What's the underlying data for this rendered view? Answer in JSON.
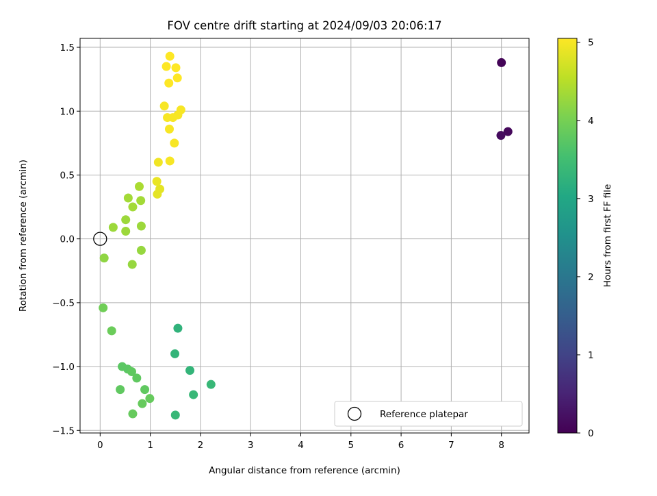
{
  "chart_data": {
    "type": "scatter",
    "title": "FOV centre drift starting at 2024/09/03 20:06:17",
    "xlabel": "Angular distance from reference (arcmin)",
    "ylabel": "Rotation from reference (arcmin)",
    "xlim": [
      -0.4,
      8.55
    ],
    "ylim": [
      -1.52,
      1.57
    ],
    "xticks": [
      0,
      1,
      2,
      3,
      4,
      5,
      6,
      7,
      8
    ],
    "xtick_labels": [
      "0",
      "1",
      "2",
      "3",
      "4",
      "5",
      "6",
      "7",
      "8"
    ],
    "yticks": [
      -1.5,
      -1.0,
      -0.5,
      0.0,
      0.5,
      1.0,
      1.5
    ],
    "ytick_labels": [
      "−1.5",
      "−1.0",
      "−0.5",
      "0.0",
      "0.5",
      "1.0",
      "1.5"
    ],
    "grid": true,
    "legend": {
      "position": "lower-right",
      "entries": [
        "Reference platepar"
      ]
    },
    "reference_point": {
      "x": 0,
      "y": 0
    },
    "colorbar": {
      "label": "Hours from first FF file",
      "range": [
        0,
        5.05
      ],
      "ticks": [
        0,
        1,
        2,
        3,
        4,
        5
      ],
      "tick_labels": [
        "0",
        "1",
        "2",
        "3",
        "4",
        "5"
      ],
      "colormap": "viridis"
    },
    "series": [
      {
        "points": [
          {
            "x": 8.0,
            "y": 1.38,
            "hours": 0.05
          },
          {
            "x": 8.13,
            "y": 0.84,
            "hours": 0.1
          },
          {
            "x": 7.99,
            "y": 0.81,
            "hours": 0.15
          },
          {
            "x": 1.55,
            "y": -0.7,
            "hours": 3.25
          },
          {
            "x": 1.49,
            "y": -0.9,
            "hours": 3.3
          },
          {
            "x": 1.79,
            "y": -1.03,
            "hours": 3.3
          },
          {
            "x": 2.21,
            "y": -1.14,
            "hours": 3.35
          },
          {
            "x": 1.86,
            "y": -1.22,
            "hours": 3.35
          },
          {
            "x": 1.5,
            "y": -1.38,
            "hours": 3.35
          },
          {
            "x": 0.44,
            "y": -1.0,
            "hours": 3.75
          },
          {
            "x": 0.55,
            "y": -1.02,
            "hours": 3.75
          },
          {
            "x": 0.63,
            "y": -1.04,
            "hours": 3.8
          },
          {
            "x": 0.73,
            "y": -1.09,
            "hours": 3.8
          },
          {
            "x": 0.4,
            "y": -1.18,
            "hours": 3.8
          },
          {
            "x": 0.89,
            "y": -1.18,
            "hours": 3.8
          },
          {
            "x": 0.99,
            "y": -1.25,
            "hours": 3.85
          },
          {
            "x": 0.84,
            "y": -1.29,
            "hours": 3.85
          },
          {
            "x": 0.65,
            "y": -1.37,
            "hours": 3.85
          },
          {
            "x": 0.23,
            "y": -0.72,
            "hours": 3.9
          },
          {
            "x": 0.06,
            "y": -0.54,
            "hours": 3.95
          },
          {
            "x": 0.08,
            "y": -0.15,
            "hours": 4.2
          },
          {
            "x": 0.64,
            "y": -0.2,
            "hours": 4.25
          },
          {
            "x": 0.82,
            "y": -0.09,
            "hours": 4.25
          },
          {
            "x": 0.51,
            "y": 0.06,
            "hours": 4.3
          },
          {
            "x": 0.26,
            "y": 0.09,
            "hours": 4.3
          },
          {
            "x": 0.82,
            "y": 0.1,
            "hours": 4.3
          },
          {
            "x": 0.51,
            "y": 0.15,
            "hours": 4.3
          },
          {
            "x": 0.65,
            "y": 0.25,
            "hours": 4.35
          },
          {
            "x": 0.81,
            "y": 0.3,
            "hours": 4.35
          },
          {
            "x": 0.56,
            "y": 0.32,
            "hours": 4.35
          },
          {
            "x": 0.78,
            "y": 0.41,
            "hours": 4.4
          },
          {
            "x": 1.14,
            "y": 0.35,
            "hours": 4.85
          },
          {
            "x": 1.19,
            "y": 0.39,
            "hours": 4.85
          },
          {
            "x": 1.13,
            "y": 0.45,
            "hours": 4.9
          },
          {
            "x": 1.16,
            "y": 0.6,
            "hours": 4.95
          },
          {
            "x": 1.39,
            "y": 0.61,
            "hours": 5.0
          },
          {
            "x": 1.48,
            "y": 0.75,
            "hours": 5.0
          },
          {
            "x": 1.38,
            "y": 0.86,
            "hours": 5.0
          },
          {
            "x": 1.34,
            "y": 0.95,
            "hours": 5.0
          },
          {
            "x": 1.45,
            "y": 0.95,
            "hours": 5.0
          },
          {
            "x": 1.55,
            "y": 0.97,
            "hours": 5.0
          },
          {
            "x": 1.61,
            "y": 1.01,
            "hours": 5.0
          },
          {
            "x": 1.28,
            "y": 1.04,
            "hours": 5.0
          },
          {
            "x": 1.37,
            "y": 1.22,
            "hours": 5.05
          },
          {
            "x": 1.54,
            "y": 1.26,
            "hours": 5.05
          },
          {
            "x": 1.32,
            "y": 1.35,
            "hours": 5.05
          },
          {
            "x": 1.51,
            "y": 1.34,
            "hours": 5.05
          },
          {
            "x": 1.39,
            "y": 1.43,
            "hours": 5.05
          }
        ]
      }
    ]
  }
}
